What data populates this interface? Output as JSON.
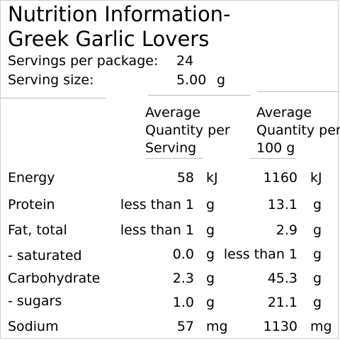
{
  "title_line1": "Nutrition Information-",
  "title_line2": "Greek Garlic Lovers",
  "servings_label": "Servings per package:",
  "servings_value": "24",
  "size_label": "Serving size:",
  "size_value": "5.00",
  "size_unit": "g",
  "header": {
    "per_serving": [
      "Average",
      "Quantity per",
      "Serving"
    ],
    "per_100g": [
      "Average",
      "Quantity per",
      "100 g"
    ]
  },
  "rows": [
    {
      "name": "Energy",
      "serving": "58",
      "serving_unit": "kJ",
      "per100": "1160",
      "per100_unit": "kJ"
    },
    {
      "name": "Protein",
      "serving": "less than 1",
      "serving_unit": "g",
      "per100": "13.1",
      "per100_unit": "g"
    },
    {
      "name": "Fat, total",
      "serving": "less than 1",
      "serving_unit": "g",
      "per100": "2.9",
      "per100_unit": "g"
    },
    {
      "name": "- saturated",
      "serving": "0.0",
      "serving_unit": "g",
      "per100": "less than 1",
      "per100_unit": "g"
    },
    {
      "name": "Carbohydrate",
      "serving": "2.3",
      "serving_unit": "g",
      "per100": "45.3",
      "per100_unit": "g"
    },
    {
      "name": "- sugars",
      "serving": "1.0",
      "serving_unit": "g",
      "per100": "21.1",
      "per100_unit": "g"
    },
    {
      "name": "Sodium",
      "serving": "57",
      "serving_unit": "mg",
      "per100": "1130",
      "per100_unit": "mg"
    }
  ]
}
